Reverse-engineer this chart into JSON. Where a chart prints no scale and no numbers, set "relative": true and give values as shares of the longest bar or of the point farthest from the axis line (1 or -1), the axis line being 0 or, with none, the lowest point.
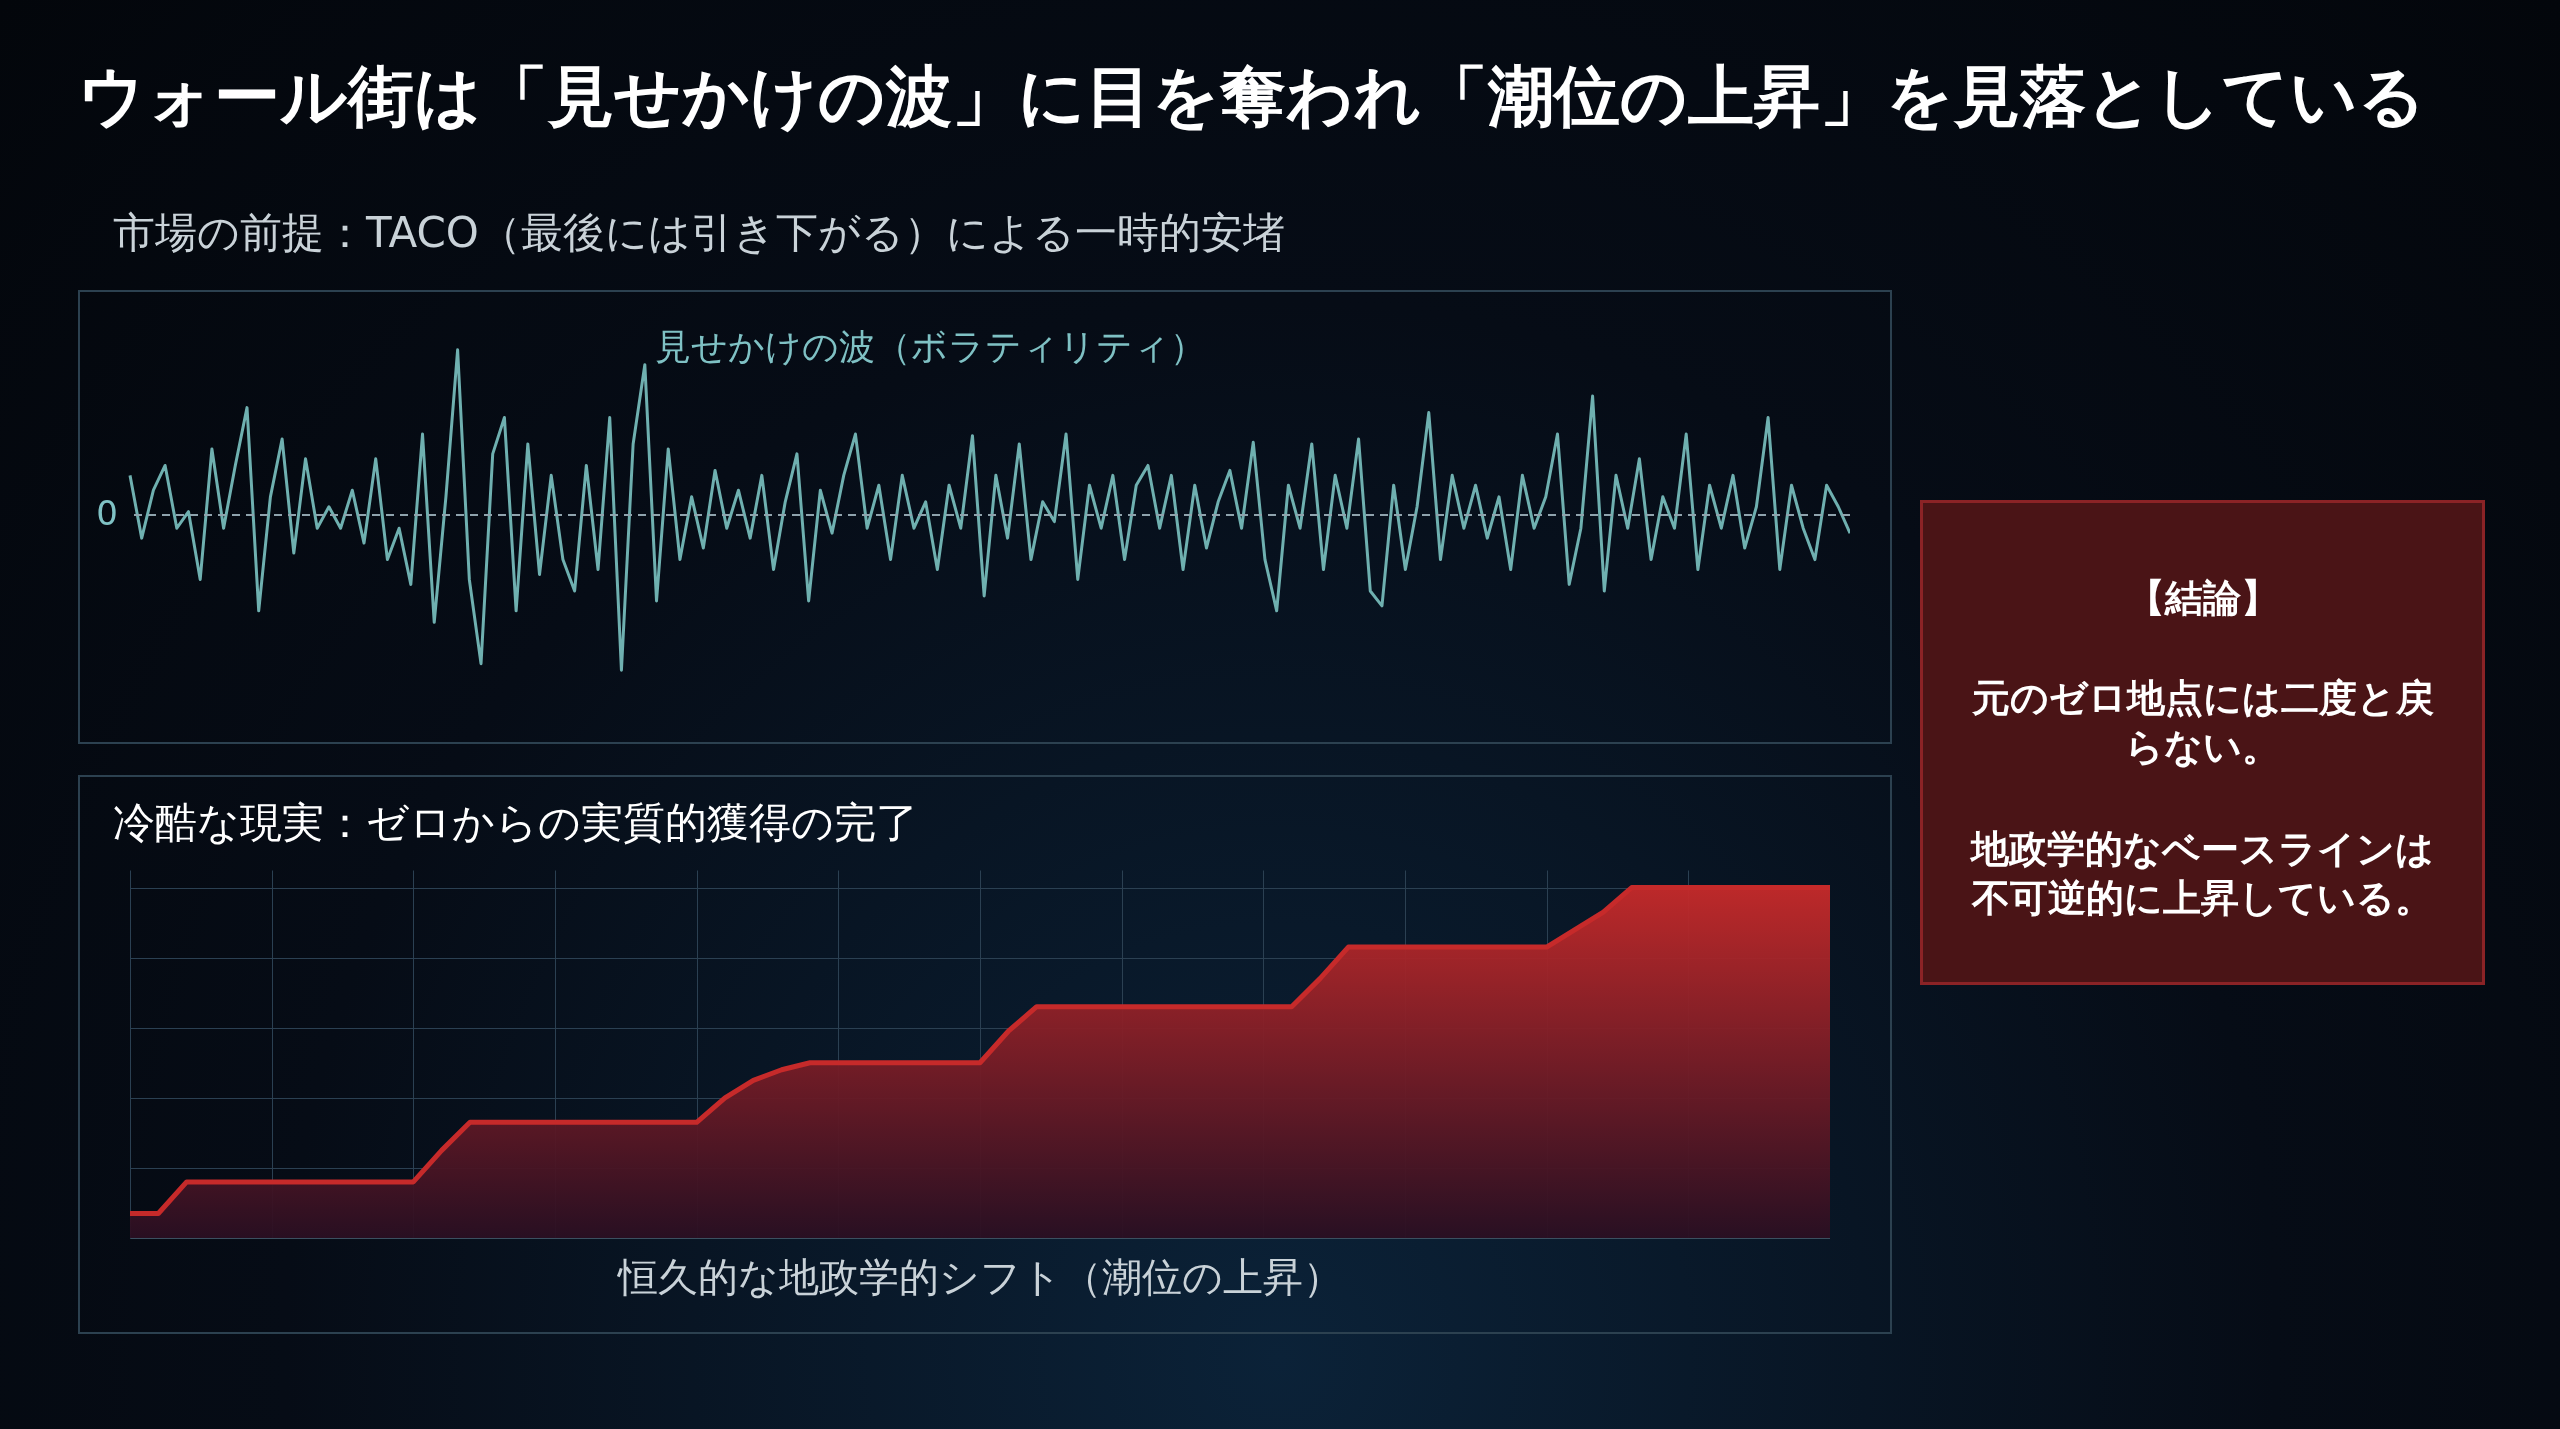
{
  "chart_data": [
    {
      "type": "line",
      "title": "ウォール街は「見せかけの波」に目を奪われ「潮位の上昇」を見落としている",
      "subtitle": "市場の前提：TACO（最後には引き下がる）による一時的安堵",
      "annotations": [
        "見せかけの波（ボラティリティ）"
      ],
      "relative": true,
      "ref_lines": [
        {
          "axis": "y",
          "value": 0,
          "label": "0",
          "color": "#8fa3ad",
          "line_style": "dashed"
        }
      ],
      "categories": [
        null,
        null,
        null,
        null,
        null,
        null,
        null,
        null,
        null,
        null,
        null,
        null,
        null,
        null,
        null,
        null,
        null,
        null,
        null,
        null,
        null,
        null,
        null,
        null,
        null,
        null,
        null,
        null,
        null,
        null,
        null,
        null,
        null,
        null,
        null,
        null,
        null,
        null,
        null,
        null,
        null,
        null,
        null,
        null,
        null,
        null,
        null,
        null,
        null,
        null,
        null,
        null,
        null,
        null,
        null,
        null,
        null,
        null,
        null,
        null,
        null,
        null,
        null,
        null,
        null,
        null,
        null,
        null,
        null,
        null,
        null,
        null,
        null,
        null,
        null,
        null,
        null,
        null,
        null,
        null,
        null,
        null,
        null,
        null,
        null,
        null,
        null,
        null,
        null,
        null,
        null,
        null,
        null,
        null,
        null,
        null,
        null,
        null,
        null,
        null,
        null,
        null,
        null,
        null,
        null,
        null,
        null,
        null,
        null,
        null,
        null,
        null,
        null,
        null,
        null,
        null,
        null,
        null,
        null,
        null,
        null,
        null,
        null,
        null,
        null,
        null,
        null,
        null,
        null,
        null,
        null,
        null,
        null,
        null,
        null,
        null,
        null,
        null,
        null,
        null,
        null,
        null,
        null,
        null,
        null,
        null,
        null,
        null
      ],
      "series": [
        {
          "color": "#6fb0b0",
          "values": [
            0.24,
            -0.14,
            0.15,
            0.3,
            -0.08,
            0.02,
            -0.39,
            0.4,
            -0.08,
            0.3,
            0.65,
            -0.58,
            0.11,
            0.46,
            -0.23,
            0.34,
            -0.08,
            0.05,
            -0.08,
            0.15,
            -0.17,
            0.34,
            -0.27,
            -0.08,
            -0.42,
            0.49,
            -0.65,
            0.11,
            1,
            -0.39,
            -0.9,
            0.37,
            0.59,
            -0.58,
            0.43,
            -0.36,
            0.24,
            -0.27,
            -0.46,
            0.3,
            -0.33,
            0.59,
            -0.94,
            0.43,
            0.91,
            -0.52,
            0.4,
            -0.27,
            0.11,
            -0.2,
            0.27,
            -0.08,
            0.15,
            -0.14,
            0.24,
            -0.33,
            0.08,
            0.37,
            -0.52,
            0.15,
            -0.11,
            0.24,
            0.49,
            -0.08,
            0.18,
            -0.27,
            0.24,
            -0.08,
            0.08,
            -0.33,
            0.18,
            -0.08,
            0.48,
            -0.49,
            0.24,
            -0.14,
            0.43,
            -0.27,
            0.08,
            -0.04,
            0.49,
            -0.39,
            0.18,
            -0.08,
            0.24,
            -0.27,
            0.18,
            0.3,
            -0.08,
            0.24,
            -0.33,
            0.18,
            -0.2,
            0.08,
            0.27,
            -0.08,
            0.44,
            -0.27,
            -0.58,
            0.18,
            -0.08,
            0.43,
            -0.33,
            0.24,
            -0.08,
            0.46,
            -0.46,
            -0.55,
            0.18,
            -0.33,
            0.05,
            0.62,
            -0.27,
            0.24,
            -0.08,
            0.18,
            -0.14,
            0.11,
            -0.33,
            0.24,
            -0.08,
            0.11,
            0.49,
            -0.42,
            -0.08,
            0.72,
            -0.46,
            0.24,
            -0.08,
            0.34,
            -0.27,
            0.11,
            -0.08,
            0.49,
            -0.33,
            0.18,
            -0.08,
            0.24,
            -0.2,
            0.05,
            0.59,
            -0.33,
            0.18,
            -0.08,
            -0.27,
            0.18,
            0.05,
            -0.11
          ]
        }
      ]
    },
    {
      "type": "area",
      "title": "冷酷な現実：ゼロからの実質的獲得の完了",
      "xlabel": "恒久的な地政学的シフト（潮位の上昇）",
      "relative": true,
      "grid": true,
      "categories": [
        null,
        null,
        null,
        null,
        null,
        null,
        null,
        null,
        null,
        null,
        null,
        null,
        null,
        null,
        null,
        null,
        null,
        null,
        null,
        null,
        null,
        null,
        null,
        null,
        null,
        null,
        null,
        null,
        null,
        null,
        null,
        null,
        null,
        null,
        null,
        null,
        null,
        null,
        null,
        null,
        null,
        null,
        null,
        null,
        null,
        null,
        null,
        null,
        null,
        null,
        null,
        null,
        null,
        null,
        null,
        null,
        null,
        null,
        null,
        null,
        null
      ],
      "series": [
        {
          "color": "#c62a2a",
          "values": [
            0.07,
            0.07,
            0.16,
            0.16,
            0.16,
            0.16,
            0.16,
            0.16,
            0.16,
            0.16,
            0.16,
            0.25,
            0.33,
            0.33,
            0.33,
            0.33,
            0.33,
            0.33,
            0.33,
            0.33,
            0.33,
            0.4,
            0.45,
            0.48,
            0.5,
            0.5,
            0.5,
            0.5,
            0.5,
            0.5,
            0.5,
            0.59,
            0.66,
            0.66,
            0.66,
            0.66,
            0.66,
            0.66,
            0.66,
            0.66,
            0.66,
            0.66,
            0.74,
            0.83,
            0.83,
            0.83,
            0.83,
            0.83,
            0.83,
            0.83,
            0.83,
            0.88,
            0.93,
            1,
            1,
            1,
            1,
            1,
            1,
            1,
            1
          ]
        }
      ]
    },
    {
      "type": "other",
      "title": "【結論】",
      "annotations": [
        "元のゼロ地点には二度と戻らない。",
        "地政学的なベースラインは不可逆的に上昇している。"
      ]
    }
  ]
}
